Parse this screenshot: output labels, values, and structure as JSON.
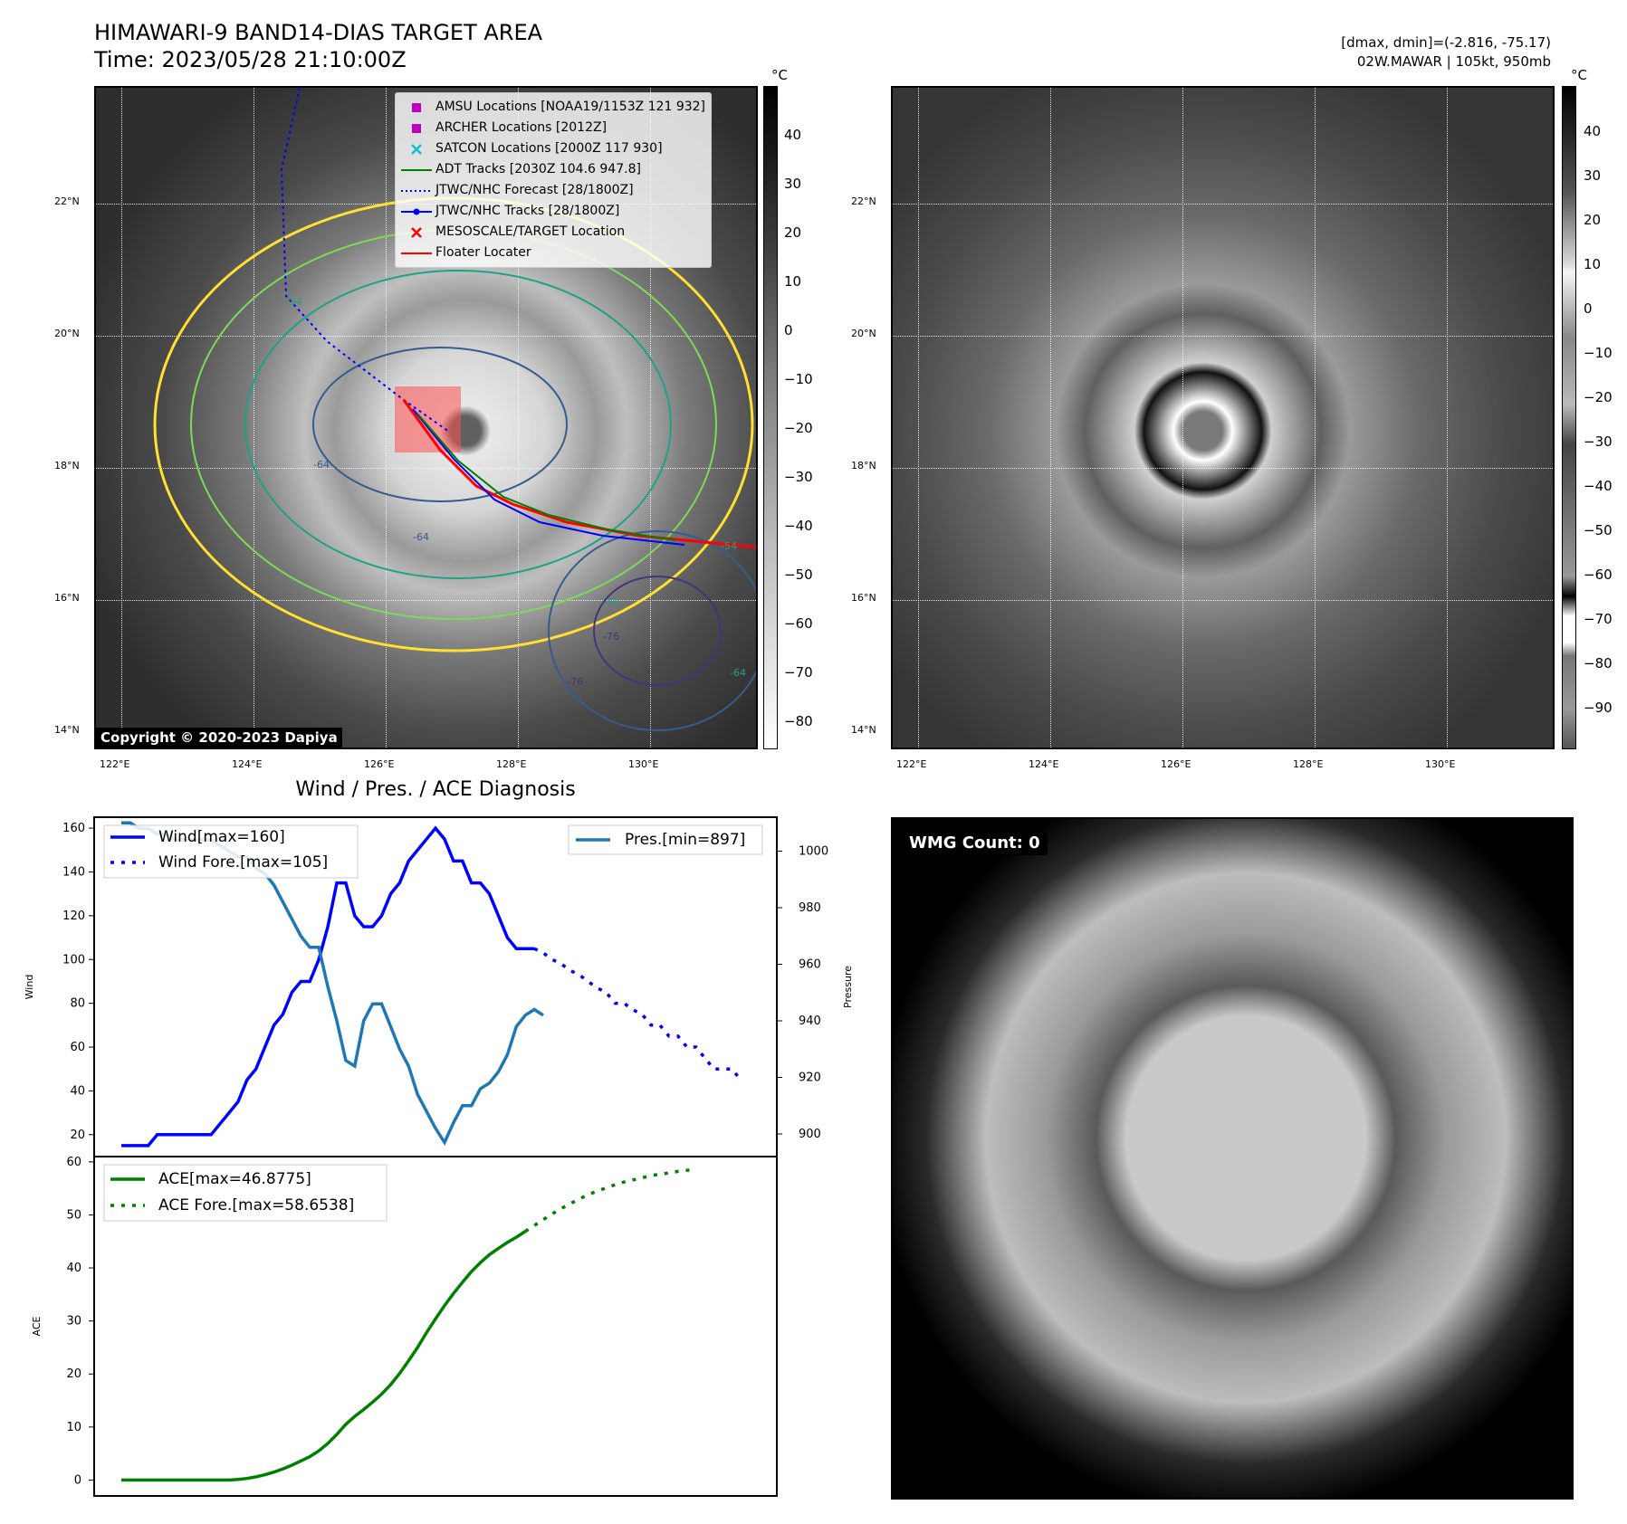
{
  "header": {
    "title_line1": "HIMAWARI-9 BAND14-DIAS TARGET AREA",
    "title_line2": "Time: 2023/05/28 21:10:00Z",
    "right_line1": "[dmax, dmin]=(-2.816, -75.17)",
    "right_line2": "02W.MAWAR | 105kt, 950mb"
  },
  "map": {
    "lat_labels": [
      "22°N",
      "20°N",
      "18°N",
      "16°N",
      "14°N"
    ],
    "lon_labels": [
      "122°E",
      "124°E",
      "126°E",
      "128°E",
      "130°E"
    ],
    "copyright": "Copyright © 2020-2023 Dapiya",
    "contour_labels": [
      "-54",
      "-64",
      "-76",
      "-54",
      "-64",
      "-76",
      "-54",
      "-64"
    ],
    "legend": [
      {
        "label": "AMSU Locations [NOAA19/1153Z 121 932]",
        "marker": "square",
        "color": "#c000c0"
      },
      {
        "label": "ARCHER Locations [2012Z]",
        "marker": "square",
        "color": "#c000c0"
      },
      {
        "label": "SATCON Locations [2000Z 117 930]",
        "marker": "x",
        "color": "#17becf"
      },
      {
        "label": "ADT Tracks [2030Z 104.6 947.8]",
        "marker": "line",
        "color": "#008000"
      },
      {
        "label": "JTWC/NHC Forecast [28/1800Z]",
        "marker": "dotted",
        "color": "#0000ff"
      },
      {
        "label": "JTWC/NHC Tracks [28/1800Z]",
        "marker": "dotline",
        "color": "#0000ff"
      },
      {
        "label": "MESOSCALE/TARGET Location",
        "marker": "x",
        "color": "#ff0000"
      },
      {
        "label": "Floater Locater",
        "marker": "line",
        "color": "#ff0000"
      }
    ]
  },
  "colorbar": {
    "unit": "°C",
    "left_ticks": [
      "40",
      "30",
      "20",
      "10",
      "0",
      "−10",
      "−20",
      "−30",
      "−40",
      "−50",
      "−60",
      "−70",
      "−80"
    ],
    "right_ticks": [
      "40",
      "30",
      "20",
      "10",
      "0",
      "−10",
      "−20",
      "−30",
      "−40",
      "−50",
      "−60",
      "−70",
      "−80",
      "−90"
    ]
  },
  "diag": {
    "title": "Wind / Pres. / ACE Diagnosis",
    "wmg": "WMG Count: 0"
  },
  "colors": {
    "wind": "#0000ff",
    "pressure": "#1f77b4",
    "ace": "#008000"
  },
  "chart_data": [
    {
      "type": "line",
      "title": "Wind / Pres. / ACE Diagnosis",
      "ylabel": "Wind",
      "y2label": "Pressure",
      "ylim": [
        10,
        165
      ],
      "y2lim": [
        892,
        1012
      ],
      "yticks": [
        20,
        40,
        60,
        80,
        100,
        120,
        140,
        160
      ],
      "y2ticks": [
        900,
        920,
        940,
        960,
        980,
        1000
      ],
      "series": [
        {
          "name": "Wind[max=160]",
          "axis": "left",
          "style": "solid",
          "values": [
            15,
            15,
            15,
            15,
            20,
            20,
            20,
            20,
            20,
            20,
            20,
            25,
            30,
            35,
            45,
            50,
            60,
            70,
            75,
            85,
            90,
            90,
            100,
            115,
            135,
            135,
            120,
            115,
            115,
            120,
            130,
            135,
            145,
            150,
            155,
            160,
            155,
            145,
            145,
            135,
            135,
            130,
            120,
            110,
            105,
            105,
            105
          ]
        },
        {
          "name": "Wind Fore.[max=105]",
          "axis": "left",
          "style": "dotted",
          "start_index": 46,
          "values": [
            105,
            103,
            100,
            98,
            95,
            93,
            90,
            87,
            85,
            80,
            80,
            77,
            75,
            70,
            70,
            65,
            65,
            60,
            60,
            55,
            50,
            50,
            50,
            45
          ]
        },
        {
          "name": "Pres.[min=897]",
          "axis": "right",
          "style": "solid",
          "values": [
            1010,
            1010,
            1008,
            1008,
            1006,
            1006,
            1004,
            1004,
            1004,
            1004,
            1004,
            1002,
            1000,
            998,
            998,
            994,
            992,
            988,
            982,
            976,
            970,
            966,
            966,
            952,
            940,
            926,
            924,
            940,
            946,
            946,
            938,
            930,
            924,
            914,
            908,
            902,
            897,
            904,
            910,
            910,
            916,
            918,
            922,
            928,
            938,
            942,
            944,
            942
          ]
        }
      ]
    },
    {
      "type": "line",
      "ylabel": "ACE",
      "ylim": [
        -3,
        61
      ],
      "yticks": [
        0,
        10,
        20,
        30,
        40,
        50,
        60
      ],
      "series": [
        {
          "name": "ACE[max=46.8775]",
          "style": "solid",
          "values": [
            0.0,
            0.0,
            0.0,
            0.0,
            0.0,
            0.0,
            0.0,
            0.0,
            0.0,
            0.0,
            0.0,
            0.0,
            0.0,
            0.1,
            0.3,
            0.6,
            1.0,
            1.5,
            2.1,
            2.8,
            3.6,
            4.4,
            5.5,
            6.9,
            8.6,
            10.5,
            12.0,
            13.3,
            14.7,
            16.2,
            18.0,
            20.1,
            22.5,
            25.0,
            27.8,
            30.4,
            32.9,
            35.2,
            37.3,
            39.3,
            41.0,
            42.5,
            43.7,
            44.8,
            45.8,
            46.9
          ]
        },
        {
          "name": "ACE Fore.[max=58.6538]",
          "style": "dotted",
          "start_index": 45,
          "values": [
            46.9,
            48.0,
            49.1,
            50.2,
            51.2,
            52.1,
            53.0,
            53.8,
            54.5,
            55.1,
            55.7,
            56.2,
            56.6,
            57.0,
            57.4,
            57.7,
            57.9,
            58.2,
            58.4,
            58.65
          ]
        }
      ]
    }
  ]
}
